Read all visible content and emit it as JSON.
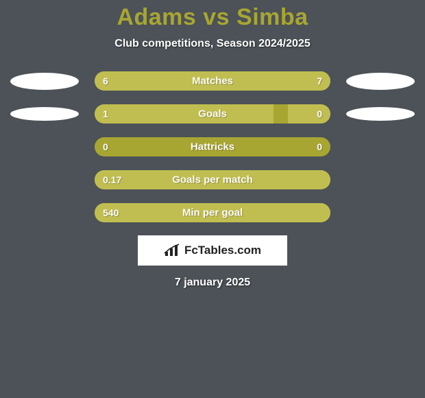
{
  "background_color": "#4c5257",
  "title": {
    "text": "Adams vs Simba",
    "color": "#a8a632",
    "fontsize": 34,
    "fontweight": 800
  },
  "subtitle": {
    "text": "Club competitions, Season 2024/2025",
    "color": "#ffffff",
    "fontsize": 16
  },
  "bar_style": {
    "track_color": "#a8a632",
    "fill_color": "#c0be50",
    "track_width": 344,
    "track_height": 28,
    "border_radius": 14,
    "label_color": "#fbfbfa"
  },
  "side_ellipse": {
    "left_color": "#ffffff",
    "right_color": "#ffffff",
    "width": 100,
    "height": 25
  },
  "rows": [
    {
      "label": "Matches",
      "left_value": "6",
      "right_value": "7",
      "left_pct": 46,
      "right_pct": 54,
      "show_left_ellipse": true,
      "show_right_ellipse": true,
      "left_ellipse_h": 25,
      "right_ellipse_h": 25
    },
    {
      "label": "Goals",
      "left_value": "1",
      "right_value": "0",
      "left_pct": 76,
      "right_pct": 18,
      "show_left_ellipse": true,
      "show_right_ellipse": true,
      "left_ellipse_h": 20,
      "right_ellipse_h": 20
    },
    {
      "label": "Hattricks",
      "left_value": "0",
      "right_value": "0",
      "left_pct": 0,
      "right_pct": 0,
      "show_left_ellipse": false,
      "show_right_ellipse": false
    },
    {
      "label": "Goals per match",
      "left_value": "0.17",
      "right_value": "",
      "left_pct": 100,
      "right_pct": 0,
      "show_left_ellipse": false,
      "show_right_ellipse": false
    },
    {
      "label": "Min per goal",
      "left_value": "540",
      "right_value": "",
      "left_pct": 100,
      "right_pct": 0,
      "show_left_ellipse": false,
      "show_right_ellipse": false
    }
  ],
  "logo": {
    "box_bg": "#ffffff",
    "icon_color": "#222222",
    "text": "FcTables.com",
    "text_color": "#222222"
  },
  "date": {
    "text": "7 january 2025",
    "color": "#ffffff",
    "fontsize": 16
  }
}
